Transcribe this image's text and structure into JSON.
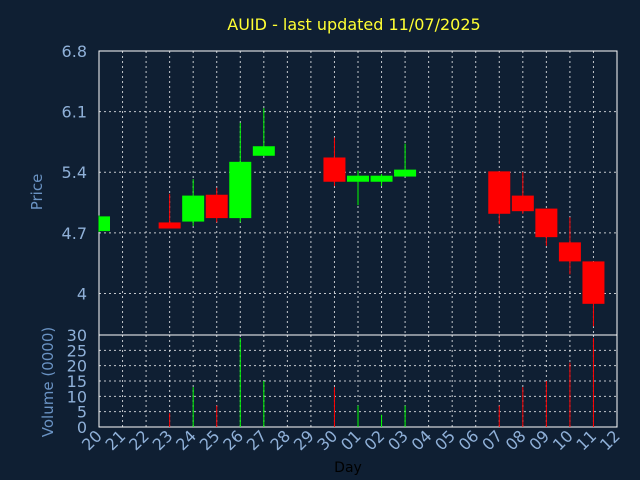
{
  "chart_data": [
    {
      "type": "candlestick",
      "title": "AUID - last updated 11/07/2025",
      "ylabel": "Price",
      "ylim": [
        3.52,
        6.8
      ],
      "yticks": [
        6.8,
        6.1,
        5.4,
        4.7,
        4
      ],
      "ytick_labels": [
        "6.8",
        "6.1",
        "5.4",
        "4.7",
        "4"
      ],
      "grid": true,
      "colors": {
        "up": "#00ff00",
        "down": "#ff0000",
        "grid": "#ffffff",
        "frame": "#ffffff",
        "background": "#0f1f33",
        "title": "#ffff33",
        "label": "#6a93c4"
      },
      "x_labels": [
        "20",
        "21",
        "22",
        "23",
        "24",
        "25",
        "26",
        "27",
        "28",
        "29",
        "30",
        "01",
        "02",
        "03",
        "04",
        "05",
        "06",
        "07",
        "08",
        "09",
        "10",
        "11",
        "12"
      ],
      "candles": [
        {
          "x": "20",
          "open": 4.72,
          "high": 4.9,
          "low": 4.71,
          "close": 4.89
        },
        {
          "x": "23",
          "open": 4.82,
          "high": 5.15,
          "low": 4.76,
          "close": 4.75
        },
        {
          "x": "24",
          "open": 4.83,
          "high": 5.32,
          "low": 4.78,
          "close": 5.13
        },
        {
          "x": "25",
          "open": 5.14,
          "high": 5.22,
          "low": 4.82,
          "close": 4.87
        },
        {
          "x": "26",
          "open": 4.87,
          "high": 5.97,
          "low": 4.82,
          "close": 5.52
        },
        {
          "x": "27",
          "open": 5.59,
          "high": 6.14,
          "low": 5.59,
          "close": 5.7
        },
        {
          "x": "30",
          "open": 5.57,
          "high": 5.8,
          "low": 5.24,
          "close": 5.29
        },
        {
          "x": "01",
          "open": 5.29,
          "high": 5.42,
          "low": 5.02,
          "close": 5.36
        },
        {
          "x": "02",
          "open": 5.29,
          "high": 5.38,
          "low": 5.24,
          "close": 5.36
        },
        {
          "x": "03",
          "open": 5.35,
          "high": 5.73,
          "low": 5.35,
          "close": 5.43
        },
        {
          "x": "07",
          "open": 5.41,
          "high": 5.41,
          "low": 4.8,
          "close": 4.92
        },
        {
          "x": "08",
          "open": 5.13,
          "high": 5.4,
          "low": 4.92,
          "close": 4.95
        },
        {
          "x": "09",
          "open": 4.98,
          "high": 4.98,
          "low": 4.55,
          "close": 4.65
        },
        {
          "x": "10",
          "open": 4.59,
          "high": 4.88,
          "low": 4.22,
          "close": 4.37
        },
        {
          "x": "11",
          "open": 4.37,
          "high": 4.37,
          "low": 3.62,
          "close": 3.88
        }
      ]
    },
    {
      "type": "bar",
      "ylabel": "Volume (0000)",
      "xlabel": "Day",
      "ylim": [
        0,
        30
      ],
      "yticks": [
        0,
        5,
        10,
        15,
        20,
        25,
        30
      ],
      "ytick_labels": [
        "0",
        "5",
        "10",
        "15",
        "20",
        "25",
        "30"
      ],
      "grid": true,
      "categories": [
        "20",
        "21",
        "22",
        "23",
        "24",
        "25",
        "26",
        "27",
        "28",
        "29",
        "30",
        "01",
        "02",
        "03",
        "04",
        "05",
        "06",
        "07",
        "08",
        "09",
        "10",
        "11",
        "12"
      ],
      "bars": [
        {
          "x": "23",
          "value": 4.5,
          "color": "#ff0000"
        },
        {
          "x": "24",
          "value": 13,
          "color": "#00ff00"
        },
        {
          "x": "25",
          "value": 7,
          "color": "#ff0000"
        },
        {
          "x": "26",
          "value": 29,
          "color": "#00ff00"
        },
        {
          "x": "27",
          "value": 15,
          "color": "#00ff00"
        },
        {
          "x": "30",
          "value": 13,
          "color": "#ff0000"
        },
        {
          "x": "01",
          "value": 7,
          "color": "#00ff00"
        },
        {
          "x": "02",
          "value": 4,
          "color": "#00ff00"
        },
        {
          "x": "03",
          "value": 7,
          "color": "#00ff00"
        },
        {
          "x": "07",
          "value": 7,
          "color": "#ff0000"
        },
        {
          "x": "08",
          "value": 13,
          "color": "#ff0000"
        },
        {
          "x": "09",
          "value": 15,
          "color": "#ff0000"
        },
        {
          "x": "10",
          "value": 21,
          "color": "#ff0000"
        },
        {
          "x": "11",
          "value": 29,
          "color": "#ff0000"
        }
      ]
    }
  ]
}
